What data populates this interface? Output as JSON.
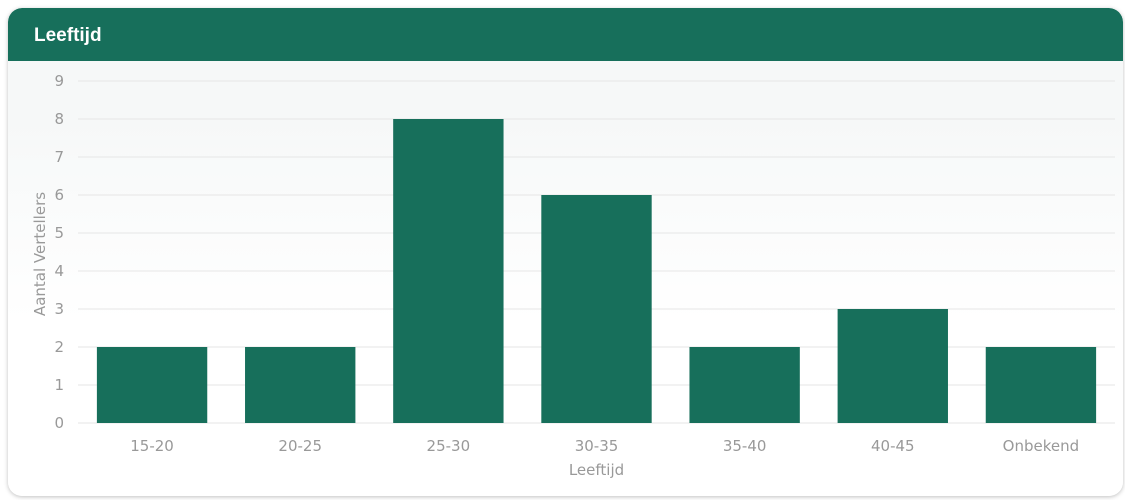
{
  "card": {
    "title": "Leeftijd"
  },
  "colors": {
    "header": "#176f5b",
    "bar": "#176f5b",
    "grid": "#e6e6e6",
    "tick_text": "#999999"
  },
  "chart_data": {
    "type": "bar",
    "title": "Leeftijd",
    "categories": [
      "15-20",
      "20-25",
      "25-30",
      "30-35",
      "35-40",
      "40-45",
      "Onbekend"
    ],
    "values": [
      2,
      2,
      8,
      6,
      2,
      3,
      2
    ],
    "xlabel": "Leeftijd",
    "ylabel": "Aantal Vertellers",
    "ylim": [
      0,
      9
    ],
    "yticks": [
      0,
      1,
      2,
      3,
      4,
      5,
      6,
      7,
      8,
      9
    ],
    "grid": true,
    "legend": "none"
  }
}
